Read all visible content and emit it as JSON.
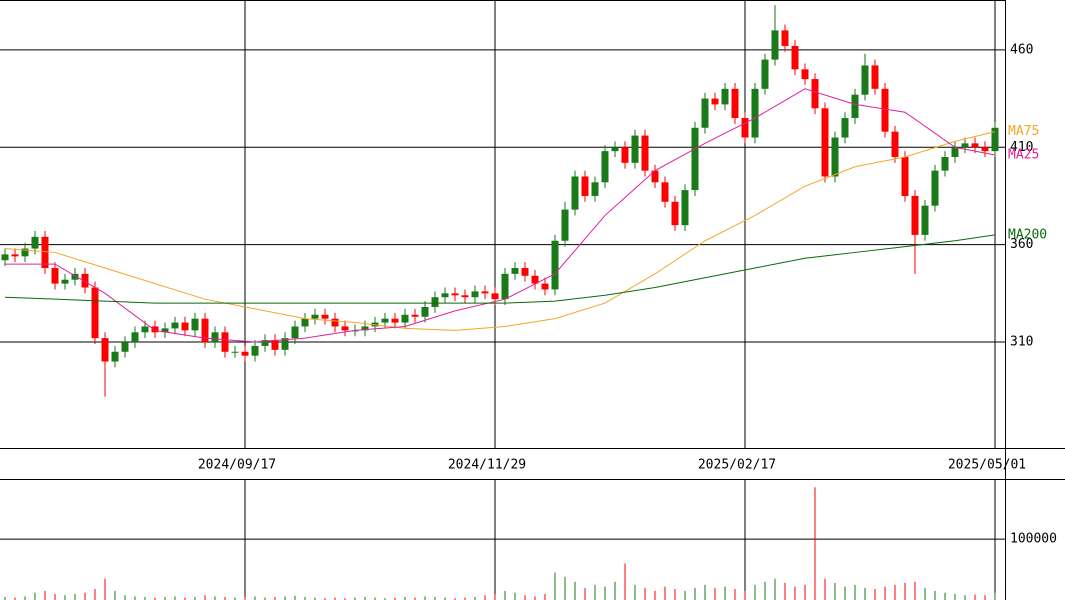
{
  "chart_data": [
    {
      "type": "candlestick",
      "categories": [
        null,
        null,
        null,
        null,
        null,
        null,
        null,
        null,
        null,
        null,
        null,
        null,
        null,
        null,
        null,
        null,
        null,
        null,
        null,
        null,
        null,
        null,
        null,
        null,
        "2024/09/17",
        null,
        null,
        null,
        null,
        null,
        null,
        null,
        null,
        null,
        null,
        null,
        null,
        null,
        null,
        null,
        null,
        null,
        null,
        null,
        null,
        null,
        null,
        null,
        null,
        "2024/11/29",
        null,
        null,
        null,
        null,
        null,
        null,
        null,
        null,
        null,
        null,
        null,
        null,
        null,
        null,
        null,
        null,
        null,
        null,
        null,
        null,
        null,
        null,
        null,
        null,
        "2025/02/17",
        null,
        null,
        null,
        null,
        null,
        null,
        null,
        null,
        null,
        null,
        null,
        null,
        null,
        null,
        null,
        null,
        null,
        null,
        null,
        null,
        null,
        null,
        null,
        null,
        "2025/05/01"
      ],
      "open": [
        352,
        355,
        354,
        358,
        364,
        348,
        340,
        342,
        345,
        338,
        312,
        300,
        305,
        310,
        315,
        318,
        315,
        317,
        320,
        316,
        322,
        310,
        315,
        305,
        305,
        303,
        308,
        311,
        306,
        312,
        318,
        322,
        324,
        322,
        318,
        316,
        316,
        318,
        320,
        322,
        320,
        324,
        323,
        328,
        333,
        335,
        334,
        333,
        336,
        335,
        332,
        345,
        348,
        344,
        340,
        337,
        362,
        378,
        395,
        385,
        392,
        408,
        410,
        402,
        416,
        398,
        392,
        382,
        370,
        388,
        420,
        435,
        432,
        440,
        425,
        415,
        440,
        455,
        470,
        462,
        450,
        445,
        430,
        395,
        415,
        425,
        437,
        452,
        440,
        418,
        405,
        385,
        365,
        380,
        398,
        405,
        410,
        412,
        410,
        408
      ],
      "high": [
        358,
        358,
        361,
        367,
        367,
        351,
        345,
        348,
        348,
        341,
        315,
        308,
        313,
        318,
        321,
        321,
        320,
        323,
        323,
        325,
        325,
        318,
        318,
        308,
        308,
        311,
        314,
        314,
        315,
        321,
        325,
        327,
        327,
        325,
        321,
        319,
        321,
        323,
        325,
        325,
        327,
        327,
        331,
        336,
        338,
        338,
        337,
        339,
        339,
        338,
        348,
        351,
        351,
        347,
        343,
        365,
        382,
        398,
        398,
        395,
        411,
        413,
        413,
        419,
        419,
        401,
        395,
        385,
        391,
        423,
        438,
        438,
        443,
        443,
        428,
        443,
        458,
        483,
        473,
        465,
        453,
        448,
        433,
        418,
        428,
        440,
        458,
        455,
        443,
        421,
        408,
        388,
        383,
        401,
        408,
        413,
        415,
        415,
        413,
        423
      ],
      "low": [
        349,
        351,
        351,
        355,
        345,
        337,
        337,
        339,
        335,
        309,
        282,
        297,
        302,
        307,
        312,
        312,
        312,
        314,
        313,
        313,
        307,
        307,
        302,
        302,
        300,
        300,
        305,
        303,
        303,
        309,
        315,
        319,
        319,
        315,
        313,
        313,
        313,
        315,
        317,
        317,
        317,
        320,
        320,
        325,
        330,
        331,
        330,
        330,
        332,
        329,
        329,
        342,
        341,
        337,
        334,
        334,
        359,
        375,
        382,
        382,
        389,
        405,
        399,
        399,
        395,
        389,
        379,
        367,
        367,
        385,
        417,
        429,
        429,
        422,
        412,
        412,
        437,
        452,
        459,
        447,
        442,
        427,
        392,
        392,
        412,
        422,
        434,
        437,
        415,
        402,
        382,
        345,
        362,
        377,
        395,
        402,
        407,
        407,
        405,
        405
      ],
      "close": [
        355,
        354,
        358,
        364,
        348,
        340,
        342,
        345,
        338,
        312,
        300,
        305,
        310,
        315,
        318,
        315,
        317,
        320,
        316,
        322,
        310,
        315,
        305,
        305,
        303,
        308,
        311,
        306,
        312,
        318,
        322,
        324,
        322,
        318,
        316,
        316,
        318,
        320,
        322,
        320,
        324,
        323,
        328,
        333,
        335,
        334,
        333,
        336,
        335,
        332,
        345,
        348,
        344,
        340,
        337,
        362,
        378,
        395,
        385,
        392,
        408,
        410,
        402,
        416,
        398,
        392,
        382,
        370,
        388,
        420,
        435,
        432,
        440,
        425,
        415,
        440,
        455,
        470,
        462,
        450,
        445,
        430,
        395,
        415,
        425,
        437,
        452,
        440,
        418,
        405,
        385,
        365,
        380,
        398,
        405,
        410,
        412,
        410,
        408,
        420
      ],
      "up_color": "#1a7a1a",
      "down_color": "#ff0000",
      "lines": [
        {
          "name": "MA75",
          "color": "#f5a623",
          "x": [
            0,
            5,
            10,
            15,
            20,
            25,
            30,
            35,
            40,
            45,
            50,
            55,
            60,
            65,
            70,
            75,
            80,
            85,
            90,
            95,
            99
          ],
          "values": [
            358,
            356,
            348,
            340,
            332,
            327,
            322,
            320,
            317,
            316,
            318,
            322,
            330,
            345,
            362,
            375,
            390,
            400,
            405,
            413,
            418
          ]
        },
        {
          "name": "MA25",
          "color": "#e0209a",
          "x": [
            0,
            5,
            10,
            15,
            20,
            25,
            30,
            35,
            40,
            45,
            50,
            55,
            60,
            65,
            70,
            75,
            80,
            85,
            90,
            95,
            99
          ],
          "values": [
            350,
            350,
            335,
            316,
            312,
            310,
            312,
            316,
            318,
            326,
            332,
            345,
            375,
            398,
            412,
            425,
            440,
            432,
            428,
            410,
            406
          ]
        },
        {
          "name": "MA200",
          "color": "#0a6a0a",
          "x": [
            0,
            5,
            10,
            15,
            20,
            25,
            30,
            35,
            40,
            45,
            50,
            55,
            60,
            65,
            70,
            75,
            80,
            85,
            90,
            95,
            99
          ],
          "values": [
            333,
            332,
            331,
            330,
            330,
            330,
            330,
            330,
            330,
            330,
            330,
            331,
            334,
            338,
            343,
            348,
            353,
            356,
            359,
            362,
            365
          ]
        }
      ],
      "ylim": [
        255.6,
        485.6
      ],
      "yticks": [
        310,
        360,
        410,
        460
      ],
      "grid": true
    },
    {
      "type": "bar",
      "values": [
        5000,
        4000,
        6000,
        12000,
        15000,
        10000,
        8000,
        10000,
        12000,
        18000,
        35000,
        15000,
        8000,
        6000,
        5000,
        4000,
        5000,
        6000,
        4000,
        5000,
        8000,
        6000,
        5000,
        4000,
        5000,
        6000,
        4000,
        5000,
        6000,
        7000,
        5000,
        4000,
        3000,
        4000,
        3000,
        4000,
        5000,
        4000,
        3000,
        4000,
        5000,
        4000,
        6000,
        5000,
        4000,
        3000,
        4000,
        5000,
        8000,
        10000,
        15000,
        12000,
        8000,
        6000,
        10000,
        45000,
        38000,
        30000,
        20000,
        25000,
        22000,
        30000,
        60000,
        25000,
        20000,
        15000,
        22000,
        18000,
        15000,
        20000,
        25000,
        20000,
        22000,
        18000,
        15000,
        25000,
        30000,
        35000,
        28000,
        22000,
        25000,
        185000,
        35000,
        28000,
        22000,
        25000,
        20000,
        18000,
        22000,
        25000,
        28000,
        30000,
        20000,
        15000,
        12000,
        10000,
        8000,
        9000,
        8000,
        12000
      ],
      "ylim": [
        0,
        197000
      ],
      "yticks": [
        100000
      ],
      "grid": true
    }
  ]
}
